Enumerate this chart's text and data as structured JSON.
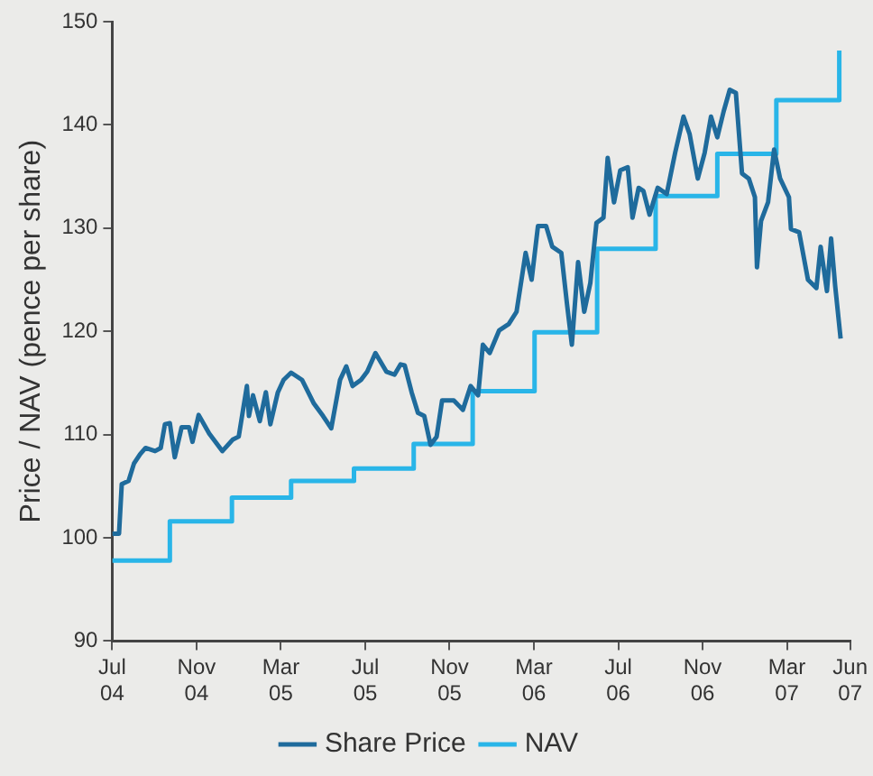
{
  "chart_data": {
    "type": "line",
    "ylabel": "Price / NAV (pence per share)",
    "xlim": [
      "2004-07",
      "2007-06"
    ],
    "ylim": [
      90,
      150
    ],
    "yticks": [
      90,
      100,
      110,
      120,
      130,
      140,
      150
    ],
    "xticks": [
      {
        "value": "2004-07",
        "label": "Jul 04"
      },
      {
        "value": "2004-11",
        "label": "Nov 04"
      },
      {
        "value": "2005-03",
        "label": "Mar 05"
      },
      {
        "value": "2005-07",
        "label": "Jul 05"
      },
      {
        "value": "2005-11",
        "label": "Nov 05"
      },
      {
        "value": "2006-03",
        "label": "Mar 06"
      },
      {
        "value": "2006-07",
        "label": "Jul 06"
      },
      {
        "value": "2006-11",
        "label": "Nov 06"
      },
      {
        "value": "2007-03",
        "label": "Mar 07"
      },
      {
        "value": "2007-06",
        "label": "Jun 07"
      }
    ],
    "grid": false,
    "legend": "bottom",
    "marker": "none",
    "line_style": "solid",
    "series": [
      {
        "name": "Share Price",
        "type": "line",
        "color": "#1f6b9c",
        "x": [
          "2004-07-01",
          "2004-07-11",
          "2004-07-15",
          "2004-07-25",
          "2004-08-02",
          "2004-08-11",
          "2004-08-19",
          "2004-09-02",
          "2004-09-10",
          "2004-09-16",
          "2004-09-23",
          "2004-09-30",
          "2004-10-10",
          "2004-10-21",
          "2004-10-26",
          "2004-11-04",
          "2004-11-19",
          "2004-12-08",
          "2004-12-23",
          "2005-01-01",
          "2005-01-13",
          "2005-01-16",
          "2005-01-22",
          "2005-02-01",
          "2005-02-09",
          "2005-02-15",
          "2005-02-25",
          "2005-03-05",
          "2005-03-16",
          "2005-04-01",
          "2005-04-18",
          "2005-05-01",
          "2005-05-13",
          "2005-05-26",
          "2005-06-04",
          "2005-06-13",
          "2005-06-25",
          "2005-07-04",
          "2005-07-16",
          "2005-08-01",
          "2005-08-13",
          "2005-08-22",
          "2005-08-28",
          "2005-09-07",
          "2005-09-16",
          "2005-09-25",
          "2005-10-04",
          "2005-10-13",
          "2005-10-21",
          "2005-11-07",
          "2005-11-20",
          "2005-12-01",
          "2005-12-12",
          "2005-12-19",
          "2005-12-29",
          "2006-01-12",
          "2006-01-26",
          "2006-02-06",
          "2006-02-18",
          "2006-02-26",
          "2006-03-07",
          "2006-03-19",
          "2006-03-28",
          "2006-04-10",
          "2006-04-18",
          "2006-04-25",
          "2006-05-04",
          "2006-05-13",
          "2006-05-22",
          "2006-05-31",
          "2006-06-10",
          "2006-06-16",
          "2006-06-25",
          "2006-07-04",
          "2006-07-15",
          "2006-07-22",
          "2006-07-31",
          "2006-08-07",
          "2006-08-16",
          "2006-08-28",
          "2006-09-10",
          "2006-09-22",
          "2006-10-04",
          "2006-10-13",
          "2006-10-25",
          "2006-11-04",
          "2006-11-13",
          "2006-11-22",
          "2006-12-01",
          "2006-12-10",
          "2006-12-19",
          "2006-12-28",
          "2007-01-07",
          "2007-01-16",
          "2007-01-19",
          "2007-01-25",
          "2007-02-04",
          "2007-02-12",
          "2007-02-20",
          "2007-03-04",
          "2007-03-07",
          "2007-03-19",
          "2007-04-01",
          "2007-04-13",
          "2007-04-19",
          "2007-04-28",
          "2007-05-04",
          "2007-05-10",
          "2007-05-18"
        ],
        "values": [
          100.4,
          100.4,
          105.2,
          105.5,
          107.2,
          108.1,
          108.7,
          108.4,
          108.7,
          111.0,
          111.1,
          107.8,
          110.7,
          110.7,
          109.3,
          111.9,
          110.1,
          108.4,
          109.5,
          109.8,
          114.7,
          111.8,
          113.8,
          111.3,
          114.1,
          111.0,
          114.1,
          115.3,
          116.0,
          115.3,
          113.0,
          111.8,
          110.6,
          115.3,
          116.6,
          114.7,
          115.3,
          116.1,
          117.9,
          116.1,
          115.8,
          116.8,
          116.7,
          114.1,
          112.1,
          111.8,
          109.0,
          109.8,
          113.3,
          113.3,
          112.4,
          114.7,
          113.8,
          118.7,
          117.9,
          120.1,
          120.7,
          121.9,
          127.6,
          125.0,
          130.2,
          130.2,
          128.2,
          127.6,
          122.7,
          118.7,
          126.7,
          121.9,
          124.7,
          130.5,
          131.0,
          136.8,
          132.5,
          135.6,
          135.9,
          131.0,
          133.9,
          133.6,
          131.3,
          133.9,
          133.3,
          137.3,
          140.8,
          139.1,
          134.8,
          137.3,
          140.8,
          138.8,
          141.3,
          143.4,
          143.1,
          135.3,
          134.8,
          133.0,
          126.2,
          130.7,
          132.5,
          137.6,
          134.8,
          133.0,
          129.9,
          129.6,
          125.0,
          124.2,
          128.2,
          123.9,
          129.0,
          124.4,
          119.3
        ]
      },
      {
        "name": "NAV",
        "type": "step",
        "color": "#29b5e8",
        "x": [
          "2004-07-01",
          "2004-09-23",
          "2004-12-22",
          "2005-03-16",
          "2005-06-15",
          "2005-09-10",
          "2005-12-04",
          "2006-03-02",
          "2006-06-01",
          "2006-08-25",
          "2006-11-22",
          "2007-02-15",
          "2007-05-16"
        ],
        "values": [
          97.8,
          101.6,
          103.9,
          105.5,
          106.7,
          109.1,
          114.2,
          119.9,
          128.0,
          133.1,
          137.2,
          142.4,
          147.2
        ]
      }
    ]
  }
}
